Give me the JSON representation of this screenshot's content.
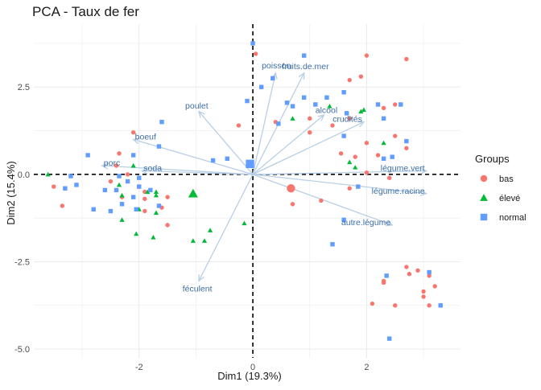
{
  "chart_data": {
    "type": "scatter",
    "title": "PCA - Taux de fer",
    "xlabel": "Dim1 (19.3%)",
    "ylabel": "Dim2 (15.4%)",
    "xlim": [
      -3.85,
      3.65
    ],
    "ylim": [
      -5.25,
      4.3
    ],
    "xticks": [
      -2,
      0,
      2
    ],
    "yticks": [
      -5.0,
      -2.5,
      0.0,
      2.5
    ],
    "xtick_labels": [
      "-2",
      "0",
      "2"
    ],
    "ytick_labels": [
      "-5.0",
      "-2.5",
      "0.0",
      "2.5"
    ],
    "grid": true,
    "legend_position": "right",
    "legend_title": "Groups",
    "series": [
      {
        "name": "bas",
        "color": "#F8766D",
        "shape": "circle",
        "points": [
          [
            0.05,
            3.45
          ],
          [
            2.7,
            3.3
          ],
          [
            2.0,
            3.4
          ],
          [
            1.7,
            2.7
          ],
          [
            1.9,
            2.8
          ],
          [
            2.5,
            2.0
          ],
          [
            2.3,
            1.9
          ],
          [
            1.0,
            1.6
          ],
          [
            1.7,
            1.6
          ],
          [
            1.4,
            1.4
          ],
          [
            -0.25,
            1.4
          ],
          [
            0.4,
            1.5
          ],
          [
            1.0,
            1.2
          ],
          [
            2.5,
            1.1
          ],
          [
            2.0,
            0.9
          ],
          [
            2.7,
            0.75
          ],
          [
            2.2,
            0.55
          ],
          [
            1.8,
            0.5
          ],
          [
            1.55,
            0.6
          ],
          [
            2.0,
            0.05
          ],
          [
            2.4,
            -0.1
          ],
          [
            1.7,
            -0.4
          ],
          [
            0.7,
            -0.85
          ],
          [
            1.2,
            -0.75
          ],
          [
            -2.1,
            1.2
          ],
          [
            -2.35,
            0.6
          ],
          [
            -2.4,
            0.25
          ],
          [
            -2.2,
            0.0
          ],
          [
            -2.5,
            -0.2
          ],
          [
            -3.5,
            -0.35
          ],
          [
            -2.3,
            -0.65
          ],
          [
            -1.9,
            -0.5
          ],
          [
            -1.9,
            -0.7
          ],
          [
            -1.5,
            -0.65
          ],
          [
            -1.9,
            -1.05
          ],
          [
            -1.5,
            -1.45
          ],
          [
            -1.6,
            -0.95
          ],
          [
            2.7,
            -2.65
          ],
          [
            2.9,
            -2.75
          ],
          [
            2.75,
            -2.85
          ],
          [
            2.3,
            -3.1
          ],
          [
            2.3,
            -3.05
          ],
          [
            3.1,
            -2.9
          ],
          [
            3.2,
            -3.2
          ],
          [
            3.0,
            -3.35
          ],
          [
            3.0,
            -3.5
          ],
          [
            2.1,
            -3.7
          ],
          [
            2.5,
            -3.75
          ],
          [
            3.1,
            -3.75
          ],
          [
            -3.35,
            -0.9
          ]
        ]
      },
      {
        "name": "élevé",
        "color": "#00BA38",
        "shape": "triangle",
        "points": [
          [
            -3.6,
            0.0
          ],
          [
            -2.1,
            0.25
          ],
          [
            -2.35,
            -0.3
          ],
          [
            -2.3,
            -0.6
          ],
          [
            -1.85,
            -0.5
          ],
          [
            -1.7,
            -0.5
          ],
          [
            -2.0,
            -1.0
          ],
          [
            -2.3,
            -1.3
          ],
          [
            -1.7,
            -1.1
          ],
          [
            -2.05,
            -1.7
          ],
          [
            -1.75,
            -1.8
          ],
          [
            -1.05,
            -1.9
          ],
          [
            -0.85,
            -1.9
          ],
          [
            -0.75,
            -1.6
          ],
          [
            -0.15,
            -1.4
          ],
          [
            0.7,
            1.6
          ],
          [
            1.35,
            1.95
          ],
          [
            1.7,
            0.35
          ],
          [
            1.9,
            1.8
          ],
          [
            2.3,
            0.9
          ],
          [
            1.8,
            0.2
          ],
          [
            -1.7,
            -0.6
          ],
          [
            1.95,
            1.85
          ]
        ]
      },
      {
        "name": "normal",
        "color": "#619CFF",
        "shape": "square",
        "points": [
          [
            0.0,
            3.75
          ],
          [
            0.9,
            3.4
          ],
          [
            0.35,
            2.75
          ],
          [
            0.15,
            2.5
          ],
          [
            -0.1,
            2.1
          ],
          [
            0.6,
            2.05
          ],
          [
            0.7,
            1.95
          ],
          [
            0.45,
            1.45
          ],
          [
            0.9,
            2.2
          ],
          [
            1.1,
            2.0
          ],
          [
            1.3,
            2.2
          ],
          [
            1.6,
            2.35
          ],
          [
            1.65,
            1.75
          ],
          [
            2.2,
            2.0
          ],
          [
            2.3,
            1.6
          ],
          [
            2.6,
            2.0
          ],
          [
            2.7,
            0.95
          ],
          [
            1.6,
            1.1
          ],
          [
            2.45,
            0.5
          ],
          [
            2.3,
            0.45
          ],
          [
            -0.45,
            0.45
          ],
          [
            -0.7,
            0.4
          ],
          [
            -1.6,
            1.5
          ],
          [
            -2.1,
            0.55
          ],
          [
            -2.0,
            -0.1
          ],
          [
            -2.2,
            -0.2
          ],
          [
            -2.35,
            -0.05
          ],
          [
            -2.0,
            -0.35
          ],
          [
            -2.4,
            -0.45
          ],
          [
            -2.6,
            -0.45
          ],
          [
            -2.1,
            -0.65
          ],
          [
            -2.3,
            -0.85
          ],
          [
            -2.05,
            -1.0
          ],
          [
            -2.5,
            -1.05
          ],
          [
            -2.8,
            -1.0
          ],
          [
            -3.3,
            -0.4
          ],
          [
            -3.1,
            -0.3
          ],
          [
            -3.2,
            -0.05
          ],
          [
            -2.9,
            0.55
          ],
          [
            -1.65,
            0.8
          ],
          [
            -1.65,
            -0.9
          ],
          [
            -1.8,
            -0.45
          ],
          [
            -0.05,
            0.3
          ],
          [
            1.85,
            -0.35
          ],
          [
            1.6,
            -1.3
          ],
          [
            1.4,
            -2.0
          ],
          [
            2.4,
            -4.7
          ],
          [
            3.1,
            -2.8
          ],
          [
            3.3,
            -3.75
          ],
          [
            2.35,
            -2.9
          ]
        ]
      }
    ],
    "centroids": [
      {
        "group": "bas",
        "x": 0.67,
        "y": -0.4
      },
      {
        "group": "élevé",
        "x": -1.05,
        "y": -0.55
      },
      {
        "group": "normal",
        "x": -0.05,
        "y": 0.3
      }
    ],
    "variables": [
      {
        "name": "fruits.de.mer",
        "x": 0.9,
        "y": 2.9
      },
      {
        "name": "poisson",
        "x": 0.4,
        "y": 2.9
      },
      {
        "name": "alcool",
        "x": 1.25,
        "y": 1.7
      },
      {
        "name": "crudités",
        "x": 1.95,
        "y": 1.5
      },
      {
        "name": "poulet",
        "x": -0.95,
        "y": 1.8
      },
      {
        "name": "boeuf",
        "x": -2.1,
        "y": 1.0
      },
      {
        "name": "porc",
        "x": -2.65,
        "y": 0.25
      },
      {
        "name": "soda",
        "x": -1.95,
        "y": 0.1
      },
      {
        "name": "légume.vert",
        "x": 3.05,
        "y": 0.1
      },
      {
        "name": "légume.racine",
        "x": 3.05,
        "y": -0.55
      },
      {
        "name": "autre.légume",
        "x": 2.45,
        "y": -1.45
      },
      {
        "name": "féculent",
        "x": -0.95,
        "y": -3.05
      }
    ]
  }
}
